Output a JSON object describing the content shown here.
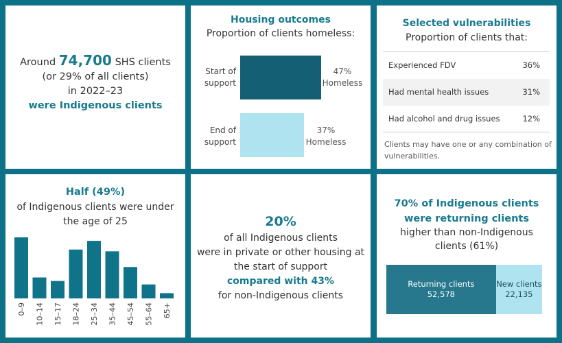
{
  "colors": {
    "background": "#0d7287",
    "dark_teal": "#155f75",
    "mid_teal": "#27778d",
    "light_blue": "#aee3ef",
    "bar_teal": "#0f7389",
    "accent_text": "#187a8f"
  },
  "summary": {
    "pre": "Around",
    "count": "74,700",
    "post": "SHS clients",
    "line2": "(or 29% of all clients)",
    "line3": "in 2022–23",
    "line4": "were Indigenous clients"
  },
  "housing": {
    "title": "Housing outcomes",
    "subtitle": "Proportion of clients homeless:",
    "start_label_1": "Start of",
    "start_label_2": "support",
    "start_value": "47%",
    "start_value_2": "Homeless",
    "end_label_1": "End of",
    "end_label_2": "support",
    "end_value": "37%",
    "end_value_2": "Homeless"
  },
  "vulnerabilities": {
    "title": "Selected vulnerabilities",
    "subtitle": "Proportion of clients that:",
    "rows": [
      {
        "label": "Experienced FDV",
        "value": "36%"
      },
      {
        "label": "Had mental health issues",
        "value": "31%"
      },
      {
        "label": "Had alcohol and drug issues",
        "value": "12%"
      }
    ],
    "note": "Clients may have one or any combination of vulnerabilities."
  },
  "age": {
    "title": "Half (49%)",
    "subtitle": "of Indigenous clients were under the age of 25"
  },
  "housing_type": {
    "big": "20%",
    "line1": "of all Indigenous clients",
    "line2": "were in private or other housing at",
    "line3": "the start of support",
    "line4": "compared with 43%",
    "line5": "for non-Indigenous clients"
  },
  "returning": {
    "title_1": "70% of Indigenous clients",
    "title_2": "were returning clients",
    "subtitle": "higher than non-Indigenous clients (61%)",
    "returning_label": "Returning clients",
    "returning_value": "52,578",
    "new_label": "New clients",
    "new_value": "22,135"
  },
  "chart_data": [
    {
      "type": "bar",
      "title": "Housing outcomes",
      "orientation": "horizontal",
      "categories": [
        "Start of support",
        "End of support"
      ],
      "values": [
        47,
        37
      ],
      "unit": "%",
      "colors": [
        "#155f75",
        "#aee3ef"
      ]
    },
    {
      "type": "bar",
      "title": "Half (49%)",
      "categories": [
        "0–9",
        "10–14",
        "15–17",
        "18–24",
        "25–34",
        "35–44",
        "45–54",
        "55–64",
        "65+"
      ],
      "values": [
        17.5,
        6,
        5,
        14,
        16.5,
        13.5,
        9,
        4,
        1.5
      ],
      "color": "#0f7389"
    },
    {
      "type": "bar",
      "title": "70% of Indigenous clients were returning clients",
      "orientation": "stacked-horizontal",
      "categories": [
        "Returning clients",
        "New clients"
      ],
      "values": [
        52578,
        22135
      ],
      "colors": [
        "#27778d",
        "#aee3ef"
      ]
    }
  ]
}
